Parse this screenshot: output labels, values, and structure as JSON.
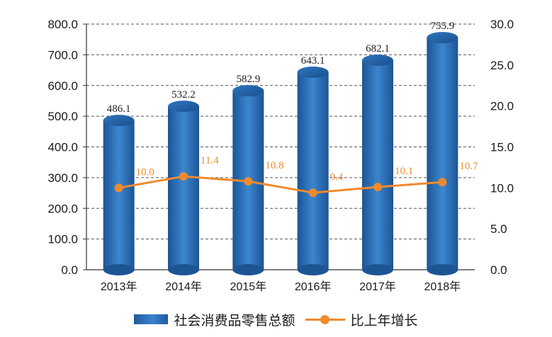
{
  "chart_data": {
    "type": "bar",
    "categories": [
      "2013年",
      "2014年",
      "2015年",
      "2016年",
      "2017年",
      "2018年"
    ],
    "series": [
      {
        "name": "社会消费品零售总额",
        "type": "bar",
        "axis": "left",
        "color": "#2b6cb3",
        "values": [
          486.1,
          532.2,
          582.9,
          643.1,
          682.1,
          755.9
        ]
      },
      {
        "name": "比上年增长",
        "type": "line",
        "axis": "right",
        "color": "#f08a2c",
        "values": [
          10.0,
          11.4,
          10.8,
          9.4,
          10.1,
          10.7
        ]
      }
    ],
    "ylim_left": [
      0,
      800
    ],
    "ylim_right": [
      0,
      30
    ],
    "left_ticks": [
      "0.0",
      "100.0",
      "200.0",
      "300.0",
      "400.0",
      "500.0",
      "600.0",
      "700.0",
      "800.0"
    ],
    "right_ticks": [
      "0.0",
      "5.0",
      "10.0",
      "15.0",
      "20.0",
      "25.0",
      "30.0"
    ],
    "bar_labels": [
      "486.1",
      "532.2",
      "582.9",
      "643.1",
      "682.1",
      "755.9"
    ],
    "line_labels": [
      "10.0",
      "11.4",
      "10.8",
      "9.4",
      "10.1",
      "10.7"
    ],
    "grid": true,
    "legend_position": "bottom"
  }
}
